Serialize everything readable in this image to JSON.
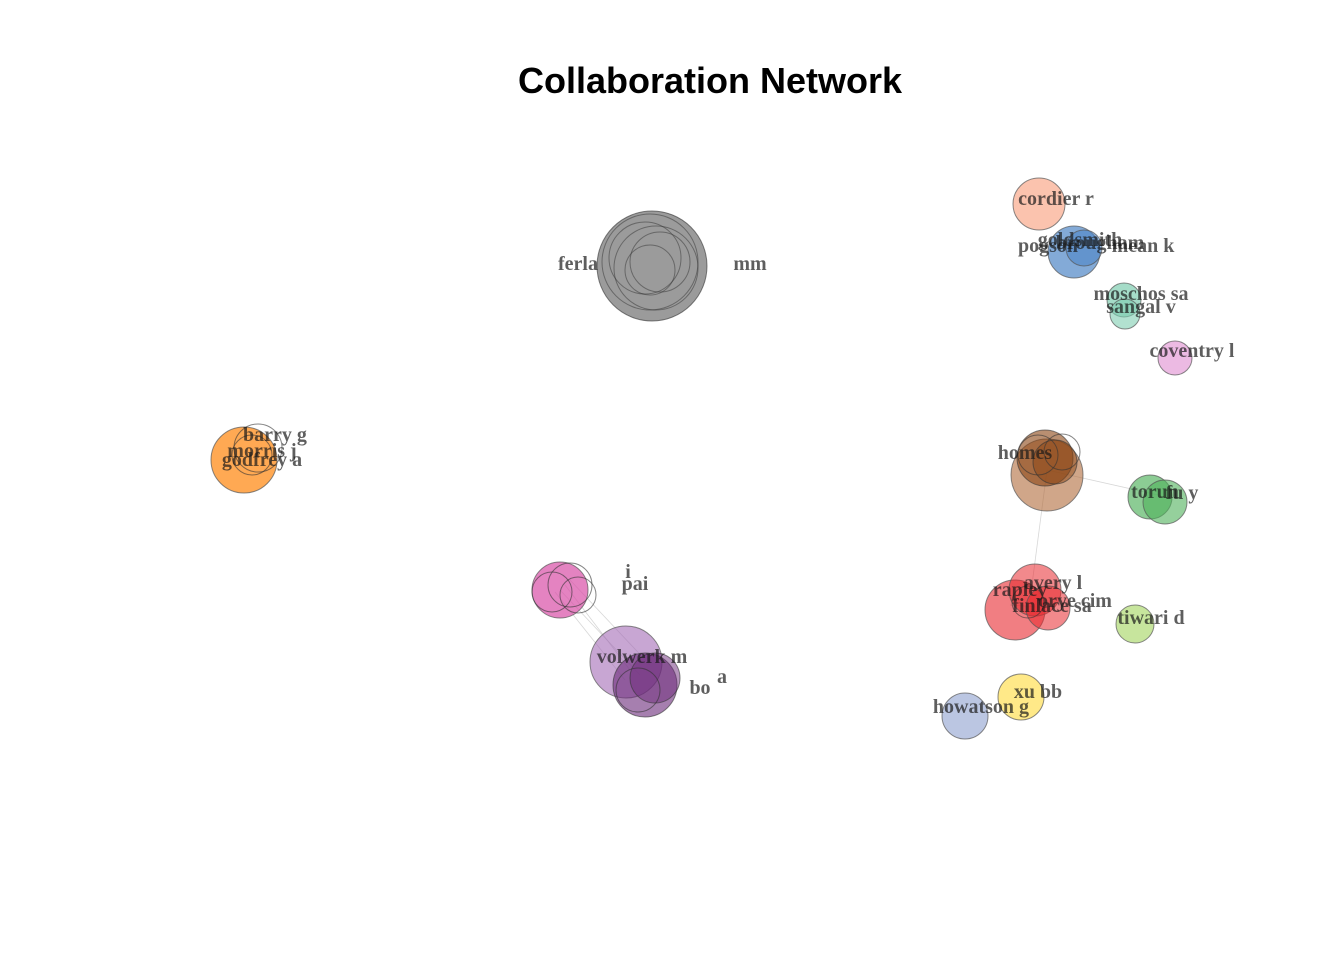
{
  "title": "Collaboration Network",
  "nodes": [
    {
      "label": "cordier r",
      "color": "#f9a98c"
    },
    {
      "label": "pogson",
      "color": "#4f86c6"
    },
    {
      "label": "goldsmith",
      "color": "#4f86c6"
    },
    {
      "label": "brougham",
      "color": "#4f86c6"
    },
    {
      "label": "mean k",
      "color": "#4f86c6"
    },
    {
      "label": "moschos sa",
      "color": "#7fcdb0"
    },
    {
      "label": "sangal v",
      "color": "#7fcdb0"
    },
    {
      "label": "coventry l",
      "color": "#e5a3d9"
    },
    {
      "label": "ferla",
      "color": "#8a8a8a"
    },
    {
      "label": "mm",
      "color": "#8a8a8a"
    },
    {
      "label": "barry g",
      "color": "#ff8c1a"
    },
    {
      "label": "morris j",
      "color": "#ff8c1a"
    },
    {
      "label": "godfrey a",
      "color": "#ff8c1a"
    },
    {
      "label": "homes",
      "color": "#b06b3a"
    },
    {
      "label": "torun",
      "color": "#4fb05a"
    },
    {
      "label": "fu y",
      "color": "#4fb05a"
    },
    {
      "label": "avery l",
      "color": "#e8282e"
    },
    {
      "label": "rapley",
      "color": "#e8282e"
    },
    {
      "label": "orye cim",
      "color": "#e8282e"
    },
    {
      "label": "finlace sa",
      "color": "#e8282e"
    },
    {
      "label": "tiwari d",
      "color": "#b4dc7c"
    },
    {
      "label": "xu bb",
      "color": "#ffe36a"
    },
    {
      "label": "howatson g",
      "color": "#9eaed6"
    },
    {
      "label": "volwerk m",
      "color": "#a46bb5"
    },
    {
      "label": "a",
      "color": "#6b2a7a"
    },
    {
      "label": "bo",
      "color": "#6b2a7a"
    },
    {
      "label": "pai",
      "color": "#d94ea6"
    },
    {
      "label": "i",
      "color": "#d94ea6"
    }
  ]
}
